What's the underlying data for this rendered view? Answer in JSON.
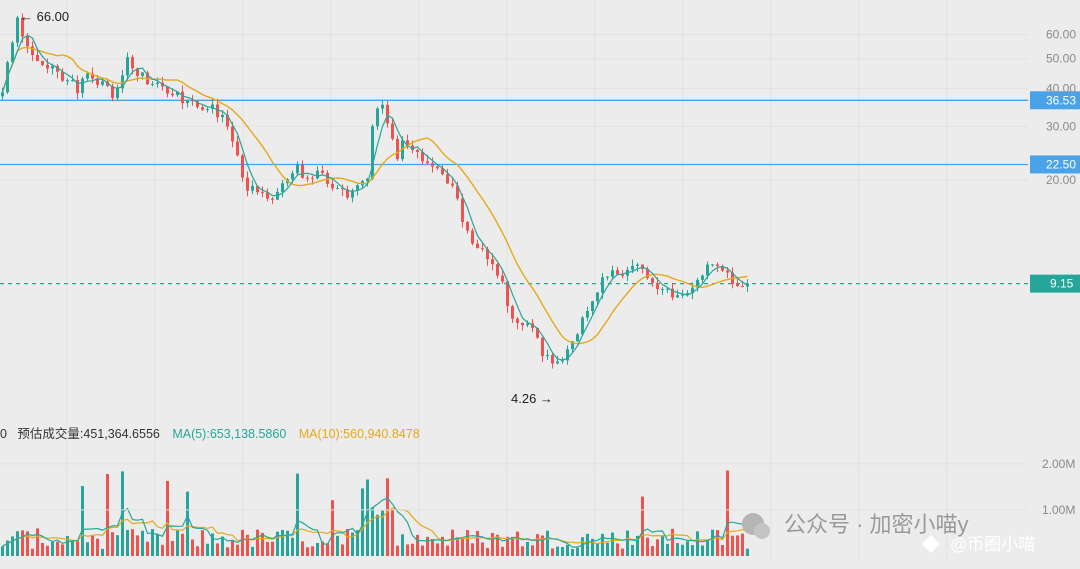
{
  "chart_data": {
    "type": "candlestick",
    "price_axis": {
      "scale": "log",
      "ticks": [
        60,
        50,
        40,
        30,
        20
      ],
      "tick_labels": [
        "60.00",
        "50.00",
        "40.00",
        "30.00",
        "20.00"
      ]
    },
    "extremes": {
      "high": {
        "value": 66.0,
        "label": "66.00"
      },
      "low": {
        "value": 4.26,
        "label": "4.26"
      }
    },
    "horizontal_lines": [
      {
        "value": 36.53,
        "label": "36.53",
        "color": "#4aa3e8"
      },
      {
        "value": 22.5,
        "label": "22.50",
        "color": "#4aa3e8"
      }
    ],
    "last_price": {
      "value": 9.15,
      "label": "9.15",
      "color": "#26a69a"
    },
    "price_path": [
      [
        0,
        40
      ],
      [
        2,
        56
      ],
      [
        3,
        66
      ],
      [
        5,
        54
      ],
      [
        8,
        48
      ],
      [
        12,
        44
      ],
      [
        15,
        40
      ],
      [
        17,
        45
      ],
      [
        19,
        42
      ],
      [
        22,
        38
      ],
      [
        25,
        50
      ],
      [
        27,
        44
      ],
      [
        30,
        42
      ],
      [
        33,
        40
      ],
      [
        36,
        37
      ],
      [
        39,
        34
      ],
      [
        42,
        35
      ],
      [
        45,
        30
      ],
      [
        47,
        24
      ],
      [
        49,
        18
      ],
      [
        51,
        19
      ],
      [
        53,
        17
      ],
      [
        55,
        18
      ],
      [
        57,
        20
      ],
      [
        59,
        22
      ],
      [
        61,
        20
      ],
      [
        63,
        21
      ],
      [
        65,
        20
      ],
      [
        67,
        19
      ],
      [
        69,
        17
      ],
      [
        71,
        19
      ],
      [
        73,
        21
      ],
      [
        74,
        30
      ],
      [
        75,
        34
      ],
      [
        76,
        36
      ],
      [
        77,
        31
      ],
      [
        78,
        27
      ],
      [
        79,
        24
      ],
      [
        80,
        27
      ],
      [
        82,
        25
      ],
      [
        84,
        24
      ],
      [
        86,
        22
      ],
      [
        88,
        21
      ],
      [
        90,
        19
      ],
      [
        92,
        15
      ],
      [
        94,
        12
      ],
      [
        96,
        11.5
      ],
      [
        98,
        11
      ],
      [
        100,
        9
      ],
      [
        102,
        7
      ],
      [
        104,
        6.8
      ],
      [
        106,
        6.6
      ],
      [
        108,
        5.5
      ],
      [
        110,
        4.9
      ],
      [
        112,
        5.2
      ],
      [
        114,
        6
      ],
      [
        116,
        7
      ],
      [
        118,
        8
      ],
      [
        120,
        9.5
      ],
      [
        122,
        10.5
      ],
      [
        124,
        9.8
      ],
      [
        126,
        10.8
      ],
      [
        128,
        10
      ],
      [
        130,
        9.3
      ],
      [
        132,
        8.8
      ],
      [
        134,
        8.5
      ],
      [
        136,
        8.3
      ],
      [
        138,
        8.7
      ],
      [
        140,
        9.8
      ],
      [
        142,
        10.8
      ],
      [
        144,
        10.0
      ],
      [
        146,
        9.2
      ],
      [
        148,
        9.0
      ],
      [
        150,
        9.15
      ]
    ],
    "volume": {
      "label_prefix": "0",
      "estimated_label": "预估成交量:451,364.6556",
      "ma5_label": "MA(5):653,138.5860",
      "ma10_label": "MA(10):560,940.8478",
      "ma5_color": "#26a69a",
      "ma10_color": "#e5a91a",
      "ticks": [
        2000000,
        1000000
      ],
      "tick_labels": [
        "2.00M",
        "1.00M"
      ]
    },
    "colors": {
      "up": "#26a69a",
      "down": "#ef5350",
      "ma_fast": "#26a69a",
      "ma_slow": "#e5a91a",
      "hline": "#4aa3e8"
    },
    "grid": true
  },
  "watermark": {
    "text1": "公众号 · 加密小喵y",
    "text2": "@币圈小喵"
  }
}
